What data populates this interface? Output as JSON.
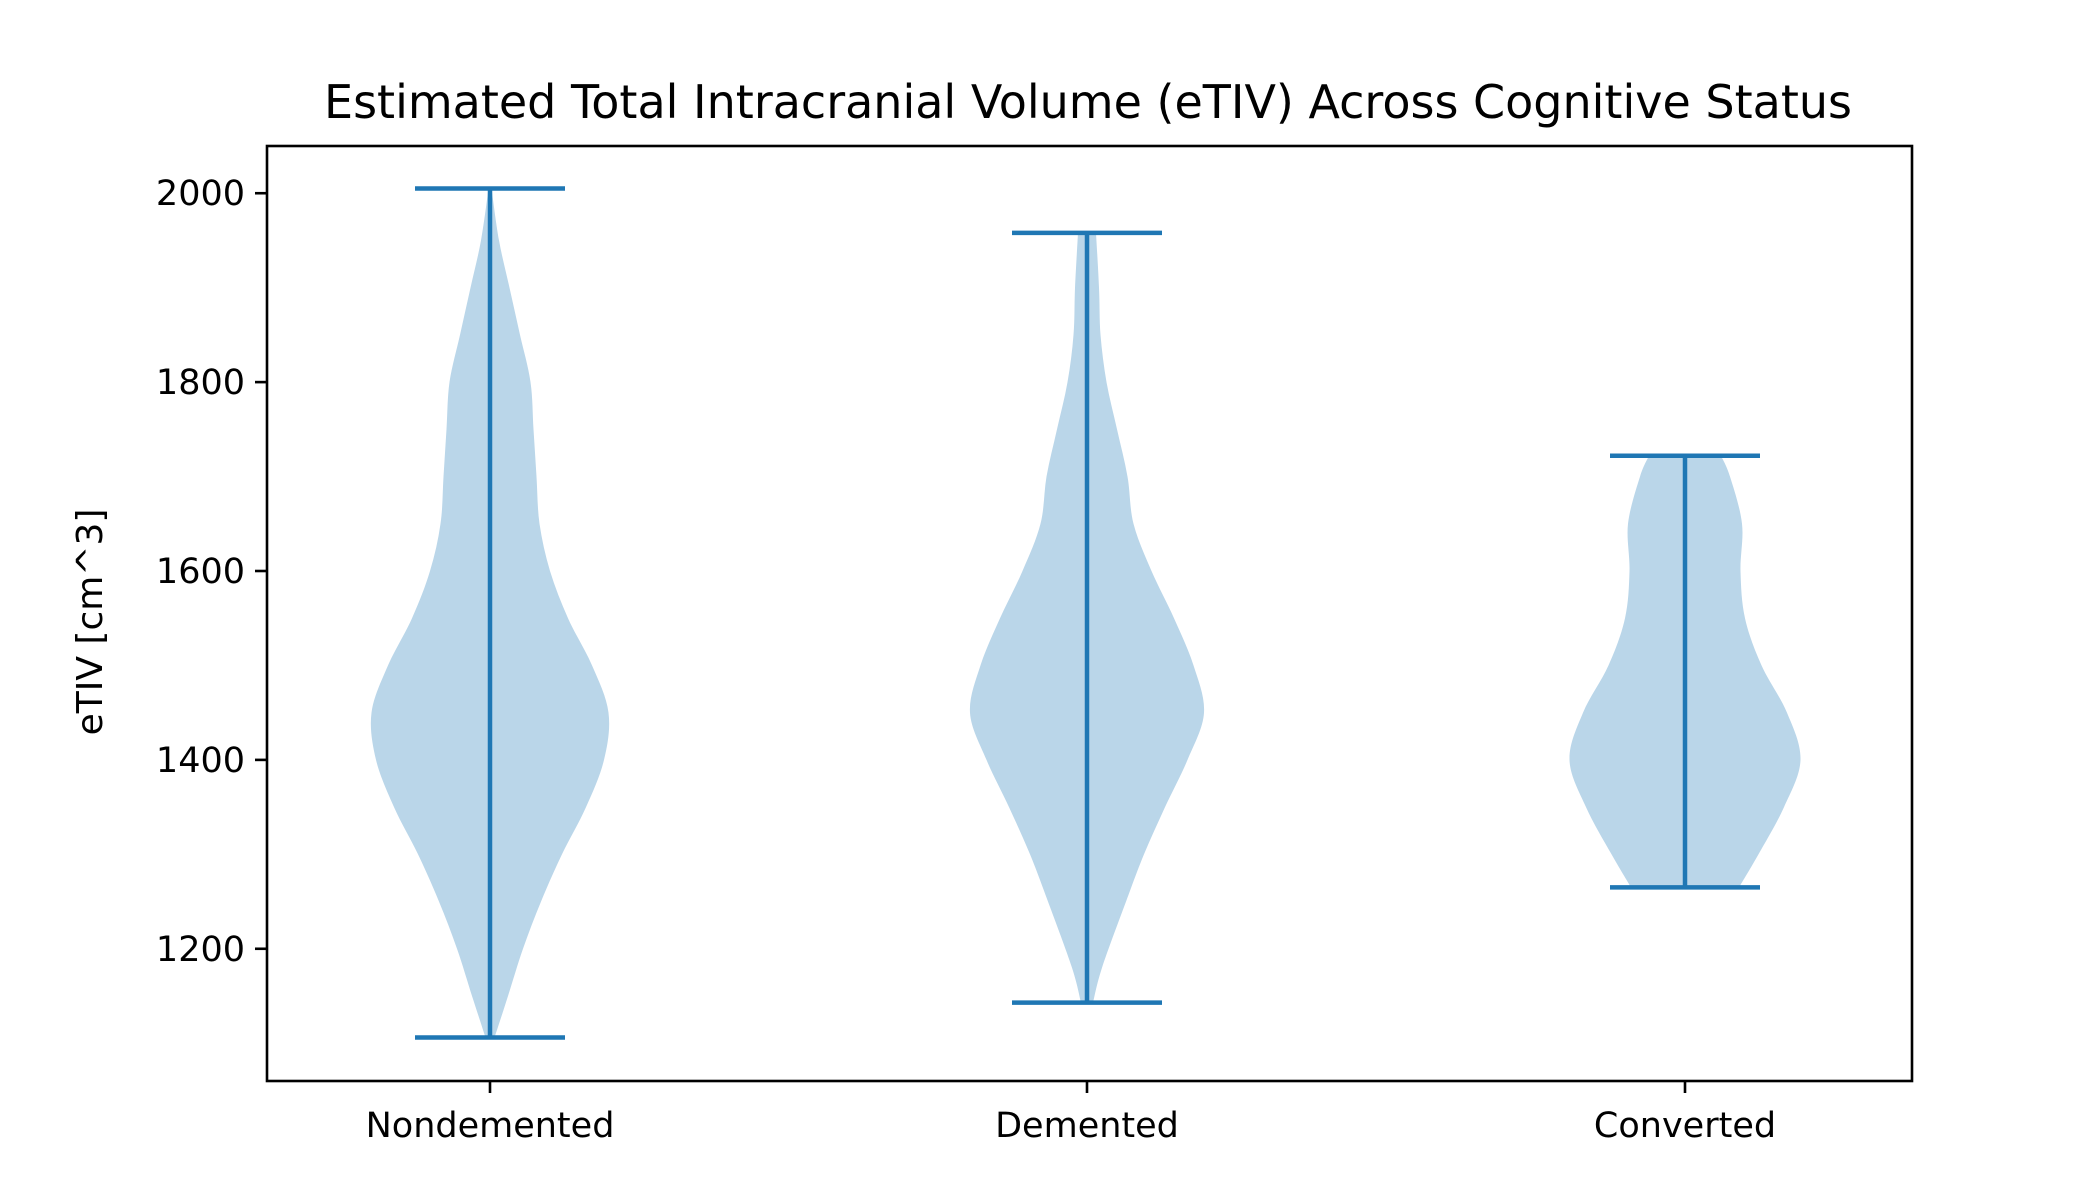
{
  "chart_data": {
    "type": "violin",
    "title": "Estimated Total Intracranial Volume (eTIV) Across Cognitive Status",
    "xlabel": "",
    "ylabel": "eTIV [cm^3]",
    "ylim": [
      1060,
      2050
    ],
    "yticks": [
      1200,
      1400,
      1600,
      1800,
      2000
    ],
    "categories": [
      "Nondemented",
      "Demented",
      "Converted"
    ],
    "grid": false,
    "colors": {
      "body": "#bad6e9",
      "lines": "#1f77b4"
    },
    "series": [
      {
        "min": 1106,
        "max": 2005,
        "profile": [
          [
            1106,
            0.03
          ],
          [
            1150,
            0.12
          ],
          [
            1200,
            0.22
          ],
          [
            1250,
            0.34
          ],
          [
            1300,
            0.48
          ],
          [
            1350,
            0.64
          ],
          [
            1400,
            0.76
          ],
          [
            1450,
            0.79
          ],
          [
            1500,
            0.68
          ],
          [
            1550,
            0.52
          ],
          [
            1600,
            0.4
          ],
          [
            1650,
            0.33
          ],
          [
            1700,
            0.31
          ],
          [
            1750,
            0.29
          ],
          [
            1800,
            0.27
          ],
          [
            1850,
            0.2
          ],
          [
            1900,
            0.13
          ],
          [
            1950,
            0.06
          ],
          [
            2005,
            0.01
          ]
        ]
      },
      {
        "min": 1143,
        "max": 1958,
        "profile": [
          [
            1143,
            0.04
          ],
          [
            1180,
            0.1
          ],
          [
            1250,
            0.26
          ],
          [
            1300,
            0.38
          ],
          [
            1350,
            0.52
          ],
          [
            1400,
            0.67
          ],
          [
            1450,
            0.78
          ],
          [
            1500,
            0.71
          ],
          [
            1550,
            0.58
          ],
          [
            1600,
            0.43
          ],
          [
            1650,
            0.31
          ],
          [
            1700,
            0.27
          ],
          [
            1750,
            0.2
          ],
          [
            1800,
            0.13
          ],
          [
            1850,
            0.09
          ],
          [
            1900,
            0.08
          ],
          [
            1958,
            0.06
          ]
        ]
      },
      {
        "min": 1265,
        "max": 1722,
        "profile": [
          [
            1265,
            0.36
          ],
          [
            1300,
            0.49
          ],
          [
            1350,
            0.66
          ],
          [
            1400,
            0.77
          ],
          [
            1450,
            0.68
          ],
          [
            1500,
            0.51
          ],
          [
            1550,
            0.4
          ],
          [
            1600,
            0.37
          ],
          [
            1650,
            0.38
          ],
          [
            1700,
            0.3
          ],
          [
            1722,
            0.24
          ]
        ]
      }
    ]
  }
}
